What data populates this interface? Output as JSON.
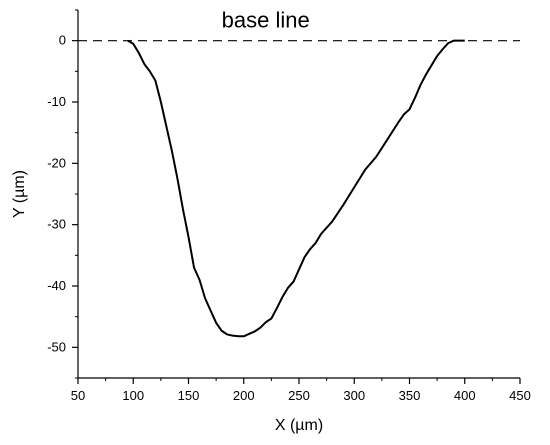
{
  "chart_data": {
    "type": "line",
    "xlabel": "X (µm)",
    "ylabel": "Y (µm)",
    "xlim": [
      50,
      450
    ],
    "ylim": [
      -55,
      5
    ],
    "x_ticks": [
      50,
      100,
      150,
      200,
      250,
      300,
      350,
      400,
      450
    ],
    "y_ticks": [
      -50,
      -40,
      -30,
      -20,
      -10,
      0
    ],
    "grid": false,
    "annotations": [
      {
        "text": "base line",
        "x": 180,
        "y": 3
      }
    ],
    "baseline": {
      "y": 0,
      "x_range": [
        50,
        450
      ],
      "style": "dashed",
      "color": "#000000"
    },
    "series": [
      {
        "color": "#000000",
        "x": [
          95,
          100,
          105,
          110,
          115,
          120,
          125,
          130,
          135,
          140,
          145,
          150,
          155,
          160,
          165,
          170,
          175,
          180,
          185,
          190,
          195,
          200,
          205,
          210,
          215,
          220,
          225,
          230,
          235,
          240,
          245,
          250,
          255,
          260,
          265,
          270,
          280,
          290,
          300,
          310,
          320,
          330,
          340,
          345,
          350,
          355,
          360,
          365,
          370,
          375,
          380,
          385,
          390,
          395,
          400
        ],
        "y": [
          0,
          -0.5,
          -2,
          -3.8,
          -5,
          -6.5,
          -10,
          -14,
          -18,
          -22.5,
          -27.5,
          -32,
          -37,
          -39,
          -42,
          -44,
          -46,
          -47.3,
          -47.9,
          -48.1,
          -48.2,
          -48.2,
          -47.8,
          -47.4,
          -46.8,
          -45.9,
          -45.3,
          -43.6,
          -41.8,
          -40.3,
          -39.3,
          -37.3,
          -35.3,
          -34.0,
          -33.0,
          -31.5,
          -29.5,
          -26.8,
          -23.9,
          -21.0,
          -18.9,
          -16.1,
          -13.3,
          -12.0,
          -11.2,
          -9.3,
          -7.2,
          -5.5,
          -4.0,
          -2.5,
          -1.4,
          -0.4,
          0,
          0,
          0
        ]
      }
    ]
  }
}
